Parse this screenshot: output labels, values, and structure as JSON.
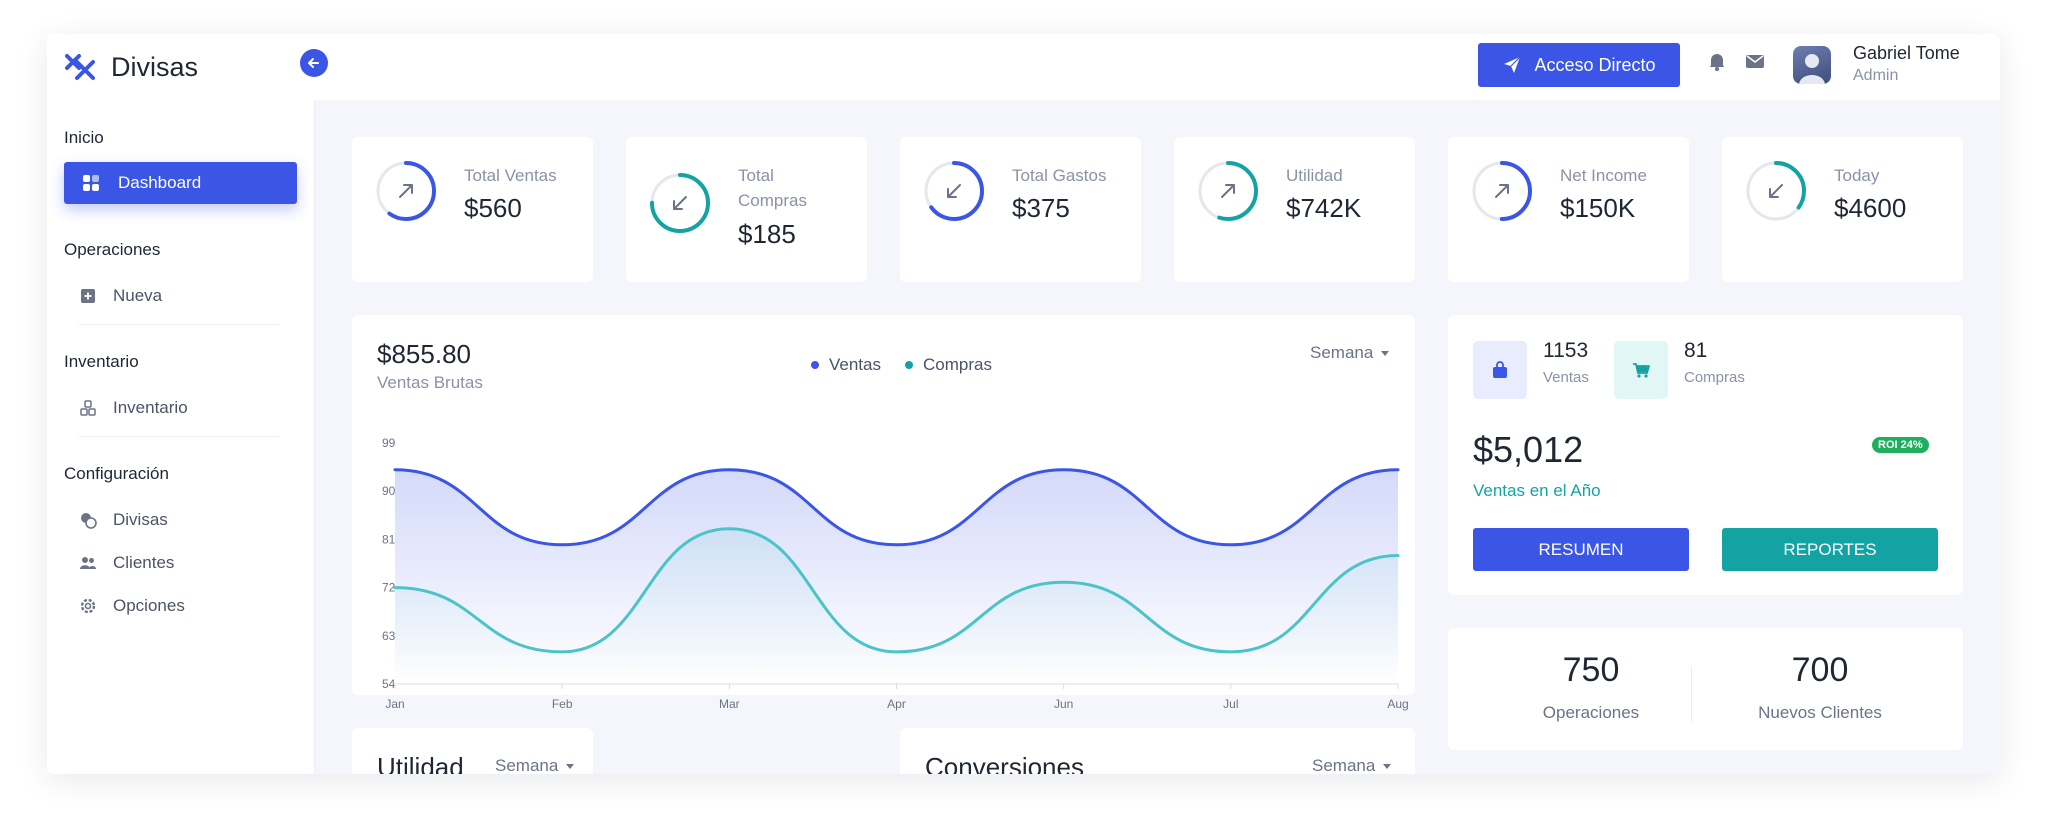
{
  "app": {
    "title": "Divisas",
    "cta_label": "Acceso Directo",
    "user": {
      "name": "Gabriel Tome",
      "role": "Admin"
    },
    "accent": "#3b55e6",
    "teal": "#14a3a3"
  },
  "sidebar": {
    "sections": [
      {
        "title": "Inicio",
        "items": [
          {
            "label": "Dashboard",
            "icon": "grid-icon",
            "active": true
          }
        ]
      },
      {
        "title": "Operaciones",
        "items": [
          {
            "label": "Nueva",
            "icon": "plus-square-icon"
          }
        ]
      },
      {
        "title": "Inventario",
        "items": [
          {
            "label": "Inventario",
            "icon": "cubes-icon"
          }
        ]
      },
      {
        "title": "Configuración",
        "items": [
          {
            "label": "Divisas",
            "icon": "coins-icon"
          },
          {
            "label": "Clientes",
            "icon": "users-icon"
          },
          {
            "label": "Opciones",
            "icon": "gear-icon"
          }
        ]
      }
    ]
  },
  "stats": [
    {
      "label": "Total Ventas",
      "value": "$560",
      "arrow": "up-right",
      "color": "#3b55e6",
      "progress": 0.6
    },
    {
      "label": "Total Compras",
      "value": "$185",
      "arrow": "down-left",
      "color": "#14a3a3",
      "progress": 0.75
    },
    {
      "label": "Total Gastos",
      "value": "$375",
      "arrow": "down-left",
      "color": "#3b55e6",
      "progress": 0.65
    },
    {
      "label": "Utilidad",
      "value": "$742K",
      "arrow": "up-right",
      "color": "#14a3a3",
      "progress": 0.55
    },
    {
      "label": "Net Income",
      "value": "$150K",
      "arrow": "up-right",
      "color": "#3b55e6",
      "progress": 0.5
    },
    {
      "label": "Today",
      "value": "$4600",
      "arrow": "down-left",
      "color": "#14a3a3",
      "progress": 0.35
    }
  ],
  "sales_chart": {
    "amount": "$855.80",
    "subtitle": "Ventas Brutas",
    "period": "Semana"
  },
  "chart_data": {
    "type": "area",
    "categories": [
      "Jan",
      "Feb",
      "Mar",
      "Apr",
      "Jun",
      "Jul",
      "Aug"
    ],
    "series": [
      {
        "name": "Ventas",
        "color": "#3b55e6",
        "values": [
          94,
          80,
          94,
          80,
          94,
          80,
          94
        ]
      },
      {
        "name": "Compras",
        "color": "#4cc3c8",
        "values": [
          72,
          60,
          83,
          60,
          73,
          60,
          78
        ]
      }
    ],
    "yticks": [
      54,
      63,
      72,
      81,
      90,
      99
    ],
    "ylim": [
      54,
      99
    ],
    "legend": "top-center"
  },
  "summary": {
    "sales_count": "1153",
    "sales_label": "Ventas",
    "purchases_count": "81",
    "purchases_label": "Compras",
    "year_amount": "$5,012",
    "roi": "ROI 24%",
    "year_label": "Ventas en el Año",
    "btn_resumen": "RESUMEN",
    "btn_reportes": "REPORTES"
  },
  "kpis": [
    {
      "value": "750",
      "label": "Operaciones"
    },
    {
      "value": "700",
      "label": "Nuevos Clientes"
    }
  ],
  "panels": [
    {
      "title": "Utilidad",
      "period": "Semana"
    },
    {
      "title": "Conversiones",
      "period": "Semana"
    }
  ]
}
